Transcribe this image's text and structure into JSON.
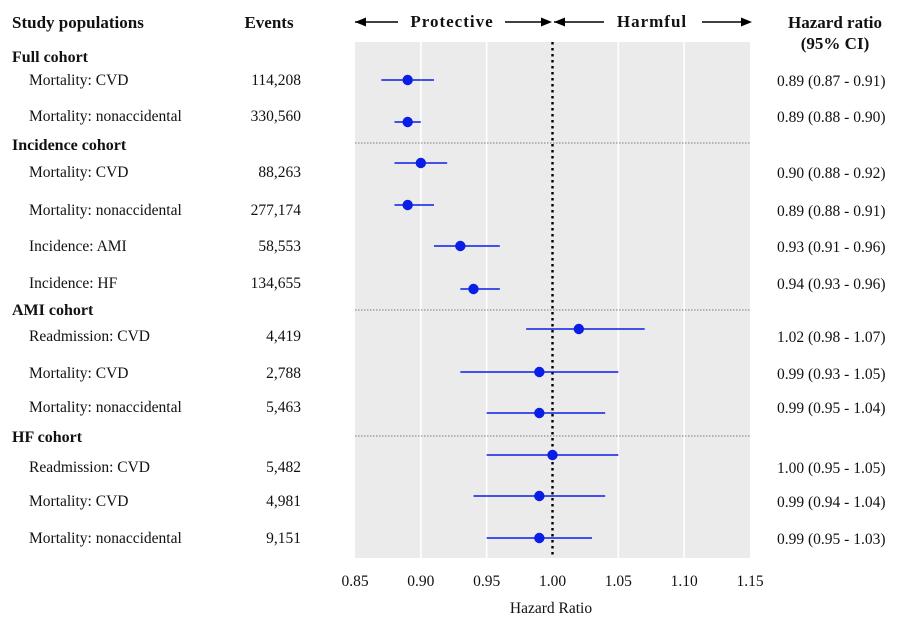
{
  "headers": {
    "study_populations": "Study populations",
    "events": "Events",
    "protective": "Protective",
    "harmful": "Harmful",
    "hazard_ratio_line1": "Hazard ratio",
    "hazard_ratio_line2": "(95% CI)"
  },
  "chart_data": {
    "type": "forest",
    "xlabel": "Hazard Ratio",
    "xlim": [
      0.85,
      1.15
    ],
    "xticks": [
      "0.85",
      "0.90",
      "0.95",
      "1.00",
      "1.05",
      "1.10",
      "1.15"
    ],
    "reference_line": 1.0,
    "groups": [
      {
        "name": "Full cohort",
        "rows": [
          {
            "label": "Mortality: CVD",
            "events": "114,208",
            "hr": 0.89,
            "lo": 0.87,
            "hi": 0.91,
            "ci_text": "0.89 (0.87 - 0.91)"
          },
          {
            "label": "Mortality: nonaccidental",
            "events": "330,560",
            "hr": 0.89,
            "lo": 0.88,
            "hi": 0.9,
            "ci_text": "0.89 (0.88 - 0.90)"
          }
        ]
      },
      {
        "name": "Incidence cohort",
        "rows": [
          {
            "label": "Mortality: CVD",
            "events": "88,263",
            "hr": 0.9,
            "lo": 0.88,
            "hi": 0.92,
            "ci_text": "0.90 (0.88 - 0.92)"
          },
          {
            "label": "Mortality: nonaccidental",
            "events": "277,174",
            "hr": 0.89,
            "lo": 0.88,
            "hi": 0.91,
            "ci_text": "0.89 (0.88 - 0.91)"
          },
          {
            "label": "Incidence: AMI",
            "events": "58,553",
            "hr": 0.93,
            "lo": 0.91,
            "hi": 0.96,
            "ci_text": "0.93 (0.91 - 0.96)"
          },
          {
            "label": "Incidence: HF",
            "events": "134,655",
            "hr": 0.94,
            "lo": 0.93,
            "hi": 0.96,
            "ci_text": "0.94 (0.93 - 0.96)"
          }
        ]
      },
      {
        "name": "AMI cohort",
        "rows": [
          {
            "label": "Readmission: CVD",
            "events": "4,419",
            "hr": 1.02,
            "lo": 0.98,
            "hi": 1.07,
            "ci_text": "1.02 (0.98 - 1.07)"
          },
          {
            "label": "Mortality: CVD",
            "events": "2,788",
            "hr": 0.99,
            "lo": 0.93,
            "hi": 1.05,
            "ci_text": "0.99 (0.93 - 1.05)"
          },
          {
            "label": "Mortality: nonaccidental",
            "events": "5,463",
            "hr": 0.99,
            "lo": 0.95,
            "hi": 1.04,
            "ci_text": "0.99 (0.95 - 1.04)"
          }
        ]
      },
      {
        "name": "HF cohort",
        "rows": [
          {
            "label": "Readmission: CVD",
            "events": "5,482",
            "hr": 1.0,
            "lo": 0.95,
            "hi": 1.05,
            "ci_text": "1.00 (0.95 - 1.05)"
          },
          {
            "label": "Mortality: CVD",
            "events": "4,981",
            "hr": 0.99,
            "lo": 0.94,
            "hi": 1.04,
            "ci_text": "0.99 (0.94 - 1.04)"
          },
          {
            "label": "Mortality: nonaccidental",
            "events": "9,151",
            "hr": 0.99,
            "lo": 0.95,
            "hi": 1.03,
            "ci_text": "0.99 (0.95 - 1.03)"
          }
        ]
      }
    ],
    "colors": {
      "point": "#0a1ee6",
      "ci_line": "#0a1ee6",
      "panel": "#ebebeb",
      "gridline": "#ffffff",
      "reference": "#000000",
      "separator": "#555555"
    }
  }
}
